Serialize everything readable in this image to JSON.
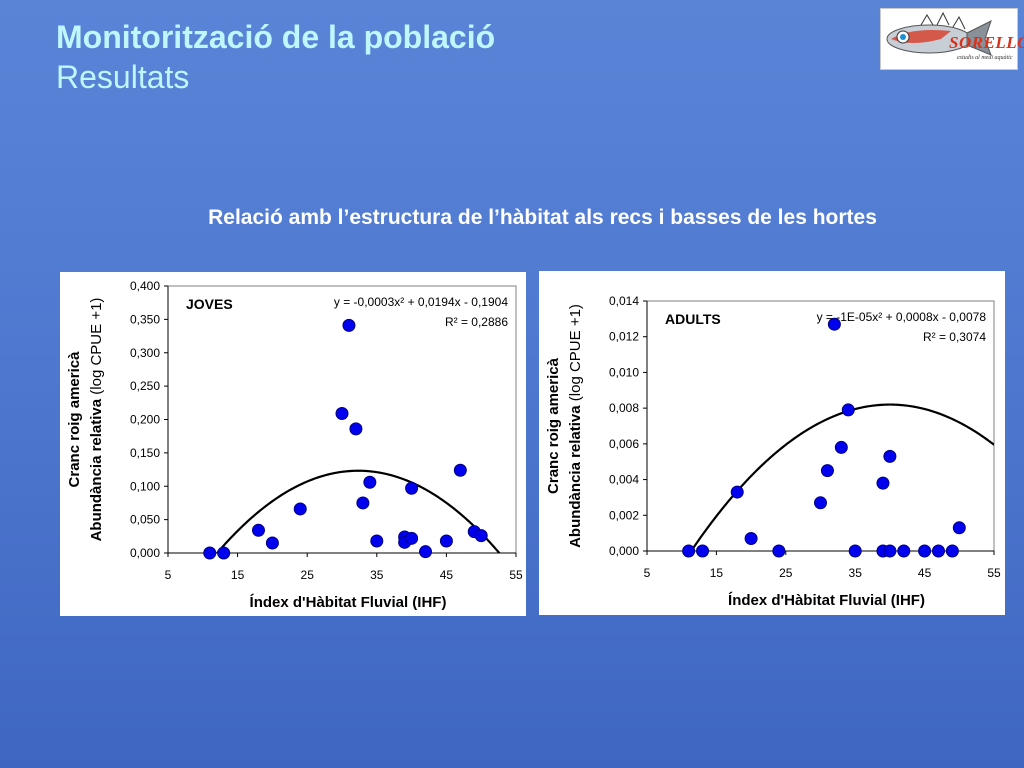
{
  "header": {
    "title": "Monitorització de la població",
    "subtitle": "Resultats"
  },
  "logo": {
    "name": "SORELLÓ",
    "tagline": "estudis al medi aquàtic"
  },
  "section_heading": "Relació amb l’estructura de l’hàbitat als recs i basses de les hortes",
  "colors": {
    "background": "#4f79d0",
    "title_text": "#bff7ff",
    "marker_fill": "#0000ee",
    "marker_stroke": "#000080",
    "curve": "#000000",
    "panel": "#ffffff"
  },
  "chart_data": [
    {
      "type": "scatter",
      "panel_id": "joves",
      "label": "JOVES",
      "equation_html": "y = -0,0003x² + 0,0194x - 0,1904",
      "r2_label": "R² = 0,2886",
      "xlabel": "Índex d'Hàbitat Fluvial (IHF)",
      "ylabel_bold": "Cranc roig americà",
      "ylabel_line2_bold": "Abundància relativa",
      "ylabel_line2_normal": " (log CPUE +1)",
      "xlim": [
        5,
        55
      ],
      "ylim": [
        0,
        0.4
      ],
      "x_ticks": [
        "5",
        "15",
        "25",
        "35",
        "45",
        "55"
      ],
      "y_ticks": [
        "0,000",
        "0,050",
        "0,100",
        "0,150",
        "0,200",
        "0,250",
        "0,300",
        "0,350",
        "0,400"
      ],
      "trend": {
        "a": -0.0003,
        "b": 0.0194,
        "c": -0.1904
      },
      "points": [
        {
          "x": 11,
          "y": 0.0
        },
        {
          "x": 13,
          "y": 0.0
        },
        {
          "x": 18,
          "y": 0.034
        },
        {
          "x": 20,
          "y": 0.015
        },
        {
          "x": 24,
          "y": 0.066
        },
        {
          "x": 30,
          "y": 0.209
        },
        {
          "x": 31,
          "y": 0.341
        },
        {
          "x": 32,
          "y": 0.186
        },
        {
          "x": 33,
          "y": 0.075
        },
        {
          "x": 34,
          "y": 0.106
        },
        {
          "x": 35,
          "y": 0.018
        },
        {
          "x": 39,
          "y": 0.024
        },
        {
          "x": 39,
          "y": 0.016
        },
        {
          "x": 40,
          "y": 0.022
        },
        {
          "x": 40,
          "y": 0.097
        },
        {
          "x": 42,
          "y": 0.002
        },
        {
          "x": 45,
          "y": 0.018
        },
        {
          "x": 47,
          "y": 0.124
        },
        {
          "x": 49,
          "y": 0.032
        },
        {
          "x": 50,
          "y": 0.026
        }
      ],
      "grid": false,
      "legend": "none"
    },
    {
      "type": "scatter",
      "panel_id": "adults",
      "label": "ADULTS",
      "equation_html": "y = -1E-05x² + 0,0008x - 0,0078",
      "r2_label": "R² = 0,3074",
      "xlabel": "Índex d'Hàbitat Fluvial (IHF)",
      "ylabel_bold": "Cranc roig americà",
      "ylabel_line2_bold": "Abundància relativa",
      "ylabel_line2_normal": " (log CPUE +1)",
      "xlim": [
        5,
        55
      ],
      "ylim": [
        0,
        0.014
      ],
      "x_ticks": [
        "5",
        "15",
        "25",
        "35",
        "45",
        "55"
      ],
      "y_ticks": [
        "0,000",
        "0,002",
        "0,004",
        "0,006",
        "0,008",
        "0,010",
        "0,012",
        "0,014"
      ],
      "trend": {
        "a": -1e-05,
        "b": 0.0008,
        "c": -0.0078
      },
      "points": [
        {
          "x": 11,
          "y": 0.0
        },
        {
          "x": 13,
          "y": 0.0
        },
        {
          "x": 18,
          "y": 0.0033
        },
        {
          "x": 20,
          "y": 0.0007
        },
        {
          "x": 24,
          "y": 0.0
        },
        {
          "x": 30,
          "y": 0.0027
        },
        {
          "x": 31,
          "y": 0.0045
        },
        {
          "x": 32,
          "y": 0.0127
        },
        {
          "x": 33,
          "y": 0.0058
        },
        {
          "x": 34,
          "y": 0.0079
        },
        {
          "x": 35,
          "y": 0.0
        },
        {
          "x": 39,
          "y": 0.0038
        },
        {
          "x": 39,
          "y": 0.0
        },
        {
          "x": 40,
          "y": 0.0
        },
        {
          "x": 40,
          "y": 0.0053
        },
        {
          "x": 42,
          "y": 0.0
        },
        {
          "x": 45,
          "y": 0.0
        },
        {
          "x": 47,
          "y": 0.0
        },
        {
          "x": 49,
          "y": 0.0
        },
        {
          "x": 50,
          "y": 0.0013
        }
      ],
      "grid": false,
      "legend": "none"
    }
  ]
}
